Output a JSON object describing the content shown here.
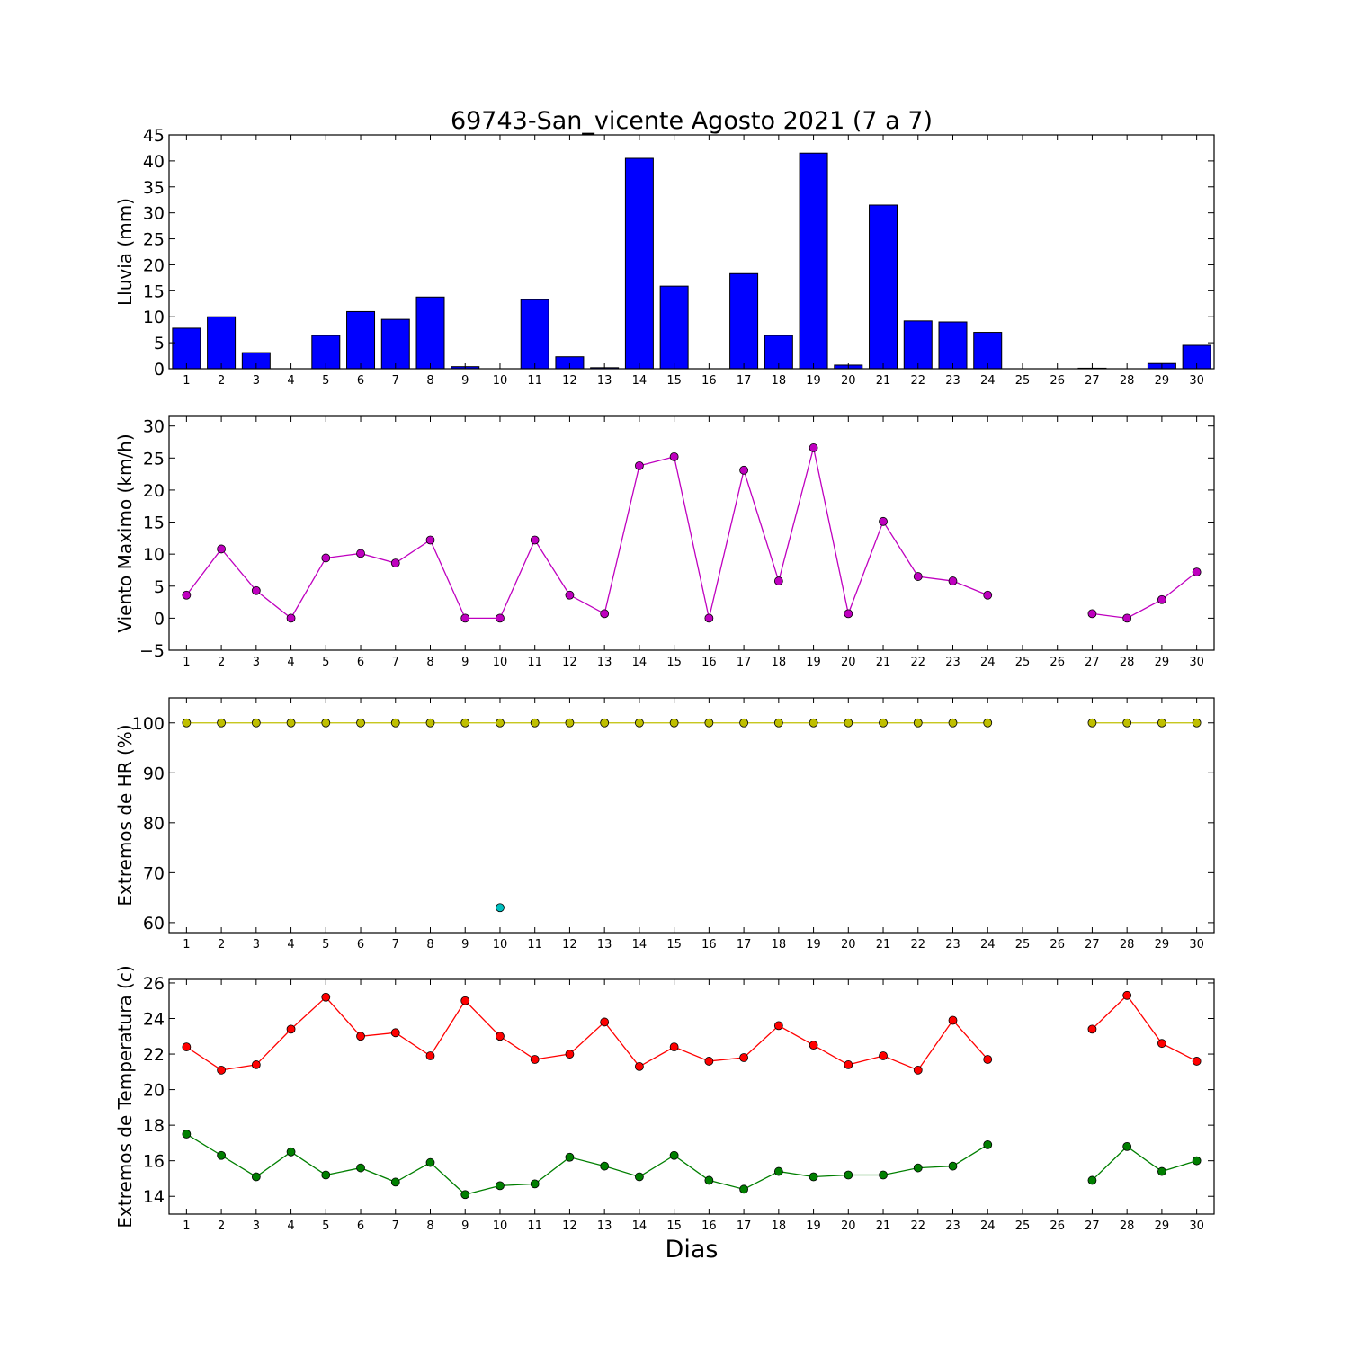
{
  "figure": {
    "title": "69743-San_vicente Agosto 2021  (7 a 7)",
    "xlabel": "Dias"
  },
  "chart_data": [
    {
      "type": "bar",
      "ylabel": "Lluvia (mm)",
      "ylim": [
        0,
        45
      ],
      "yticks": [
        0,
        5,
        10,
        15,
        20,
        25,
        30,
        35,
        40,
        45
      ],
      "categories": [
        1,
        2,
        3,
        4,
        5,
        6,
        7,
        8,
        9,
        10,
        11,
        12,
        13,
        14,
        15,
        16,
        17,
        18,
        19,
        20,
        21,
        22,
        23,
        24,
        25,
        26,
        27,
        28,
        29,
        30
      ],
      "color": "#0000ff",
      "series": [
        {
          "values": [
            7.8,
            10.0,
            3.1,
            0.0,
            6.4,
            11.0,
            9.5,
            13.8,
            0.4,
            0.0,
            13.3,
            2.3,
            0.2,
            40.5,
            15.9,
            0.0,
            18.3,
            6.4,
            41.5,
            0.7,
            31.5,
            9.2,
            9.0,
            7.0,
            0.0,
            0.0,
            0.1,
            0.0,
            1.0,
            4.5
          ]
        }
      ]
    },
    {
      "type": "line",
      "ylabel": "Viento Maximo (km/h)",
      "ylim": [
        -5,
        31.5
      ],
      "yticks": [
        -5,
        0,
        5,
        10,
        15,
        20,
        25,
        30
      ],
      "ytick_labels": [
        "−5",
        "0",
        "5",
        "10",
        "15",
        "20",
        "25",
        "30"
      ],
      "x": [
        1,
        2,
        3,
        4,
        5,
        6,
        7,
        8,
        9,
        10,
        11,
        12,
        13,
        14,
        15,
        16,
        17,
        18,
        19,
        20,
        21,
        22,
        23,
        24,
        25,
        26,
        27,
        28,
        29,
        30
      ],
      "series": [
        {
          "color": "#bf00bf",
          "values": [
            3.6,
            10.8,
            4.3,
            0.0,
            9.4,
            10.1,
            8.6,
            12.2,
            0.0,
            0.0,
            12.2,
            3.6,
            0.7,
            23.8,
            25.2,
            0.0,
            23.1,
            5.8,
            26.6,
            0.7,
            15.1,
            6.5,
            5.8,
            3.6,
            null,
            null,
            0.7,
            0.0,
            2.9,
            7.2
          ]
        }
      ]
    },
    {
      "type": "line",
      "ylabel": "Extremos de HR (%)",
      "ylim": [
        58,
        105
      ],
      "yticks": [
        60,
        70,
        80,
        90,
        100
      ],
      "x": [
        1,
        2,
        3,
        4,
        5,
        6,
        7,
        8,
        9,
        10,
        11,
        12,
        13,
        14,
        15,
        16,
        17,
        18,
        19,
        20,
        21,
        22,
        23,
        24,
        25,
        26,
        27,
        28,
        29,
        30
      ],
      "series": [
        {
          "color": "#bfbf00",
          "values": [
            100,
            100,
            100,
            100,
            100,
            100,
            100,
            100,
            100,
            100,
            100,
            100,
            100,
            100,
            100,
            100,
            100,
            100,
            100,
            100,
            100,
            100,
            100,
            100,
            null,
            null,
            100,
            100,
            100,
            100
          ]
        },
        {
          "color": "#00bfbf",
          "values": [
            null,
            null,
            null,
            null,
            null,
            null,
            null,
            null,
            null,
            63,
            null,
            null,
            null,
            null,
            null,
            null,
            null,
            null,
            null,
            null,
            null,
            null,
            null,
            null,
            null,
            null,
            null,
            null,
            null,
            null
          ]
        }
      ]
    },
    {
      "type": "line",
      "ylabel": "Extremos de Temperatura (c)",
      "ylim": [
        13,
        26.2
      ],
      "yticks": [
        14,
        16,
        18,
        20,
        22,
        24,
        26
      ],
      "x": [
        1,
        2,
        3,
        4,
        5,
        6,
        7,
        8,
        9,
        10,
        11,
        12,
        13,
        14,
        15,
        16,
        17,
        18,
        19,
        20,
        21,
        22,
        23,
        24,
        25,
        26,
        27,
        28,
        29,
        30
      ],
      "series": [
        {
          "color": "#ff0000",
          "values": [
            22.4,
            21.1,
            21.4,
            23.4,
            25.2,
            23.0,
            23.2,
            21.9,
            25.0,
            23.0,
            21.7,
            22.0,
            23.8,
            21.3,
            22.4,
            21.6,
            21.8,
            23.6,
            22.5,
            21.4,
            21.9,
            21.1,
            23.9,
            21.7,
            null,
            null,
            23.4,
            25.3,
            22.6,
            21.6
          ]
        },
        {
          "color": "#007f00",
          "values": [
            17.5,
            16.3,
            15.1,
            16.5,
            15.2,
            15.6,
            14.8,
            15.9,
            14.1,
            14.6,
            14.7,
            16.2,
            15.7,
            15.1,
            16.3,
            14.9,
            14.4,
            15.4,
            15.1,
            15.2,
            15.2,
            15.6,
            15.7,
            16.9,
            null,
            null,
            14.9,
            16.8,
            15.4,
            16.0
          ]
        }
      ]
    }
  ]
}
